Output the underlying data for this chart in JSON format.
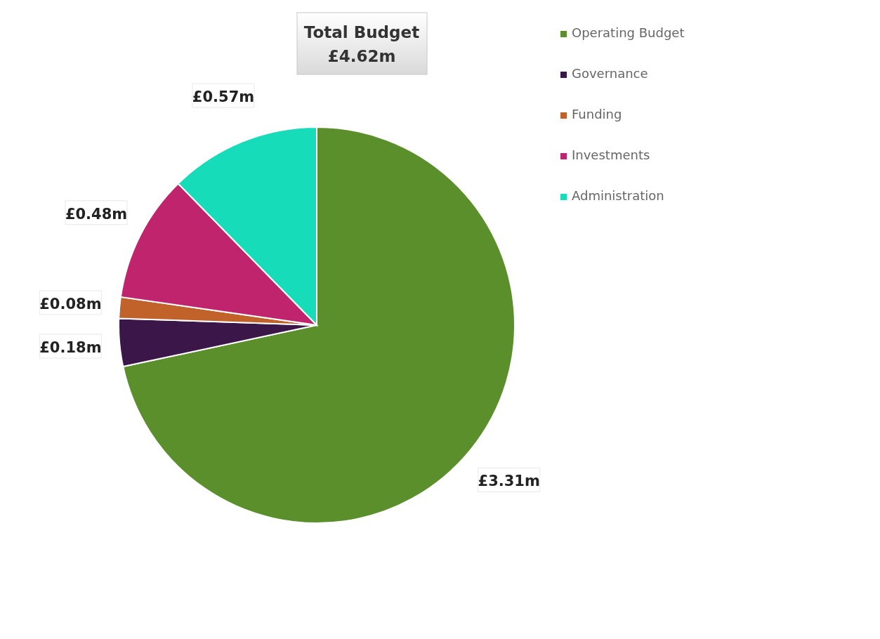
{
  "chart_data": {
    "type": "pie",
    "title": "Total Budget",
    "subtitle": "£4.62m",
    "categories": [
      "Operating Budget",
      "Governance",
      "Funding",
      "Investments",
      "Administration"
    ],
    "values": [
      3.31,
      0.18,
      0.08,
      0.48,
      0.57
    ],
    "colors": [
      "#5a8f2c",
      "#3a1748",
      "#c0622a",
      "#c0246c",
      "#16dcb9"
    ],
    "value_labels": [
      "£3.31m",
      "£0.18m",
      "£0.08m",
      "£0.48m",
      "£0.57m"
    ],
    "legend": "top right"
  }
}
